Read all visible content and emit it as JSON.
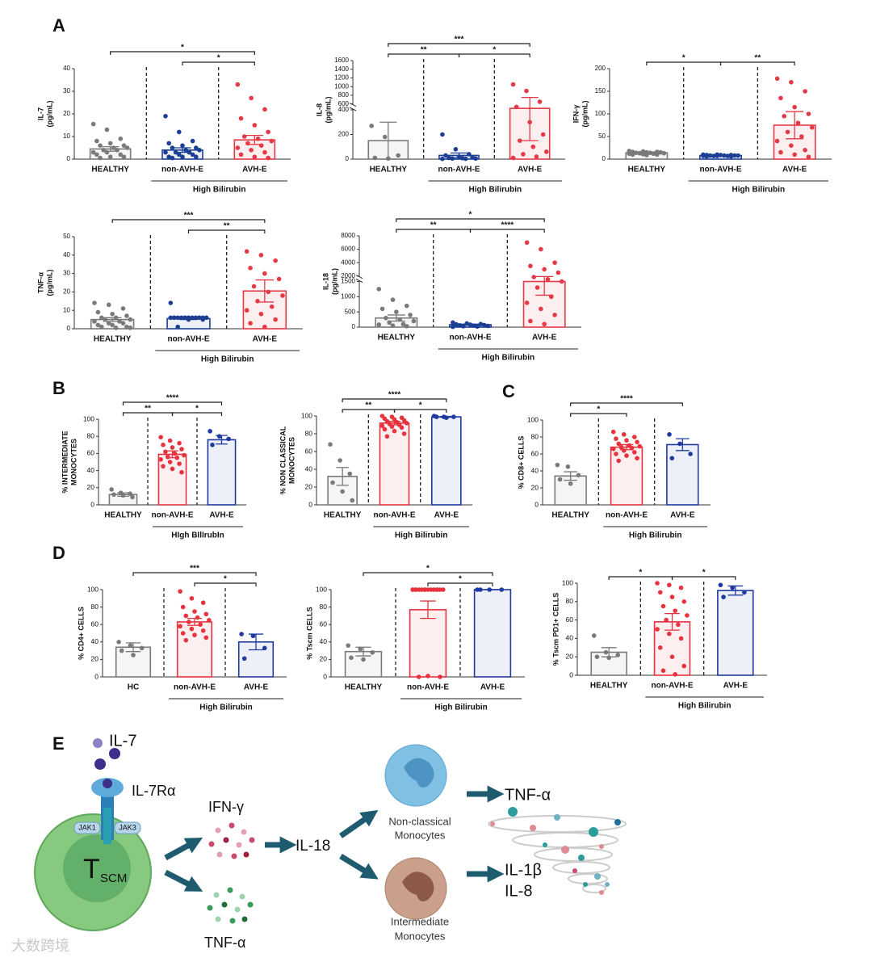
{
  "panel_labels": [
    "A",
    "B",
    "C",
    "D",
    "E"
  ],
  "chart_data": [
    {
      "type": "bar",
      "ylabel": [
        "IL-7",
        "(pg/mL)"
      ],
      "categories": [
        "HEALTHY",
        "non-AVH-E",
        "AVH-E"
      ],
      "colors": [
        "#7a7a7a",
        "#1c3f94",
        "#e63946"
      ],
      "values": [
        4.5,
        4,
        8.5
      ],
      "errors": [
        1,
        1,
        2
      ],
      "points": [
        [
          15.5,
          13,
          9,
          8,
          7,
          6,
          6,
          5,
          5,
          4,
          4,
          3,
          3,
          2,
          2,
          1,
          1,
          0.5
        ],
        [
          19,
          12,
          8,
          7,
          6,
          5,
          5,
          4,
          4,
          3,
          3,
          3,
          2,
          2,
          1,
          1,
          1,
          0.5
        ],
        [
          33,
          27,
          22,
          18,
          15,
          12,
          10,
          9,
          8,
          7,
          6,
          5,
          4,
          3,
          2,
          1,
          0.5
        ]
      ],
      "ylim": [
        0,
        40
      ],
      "yticks": [
        0,
        10,
        20,
        30,
        40
      ],
      "group_label": "High Bilirubin",
      "brackets": [
        {
          "from": 1,
          "to": 2,
          "label": "*"
        },
        {
          "from": 0,
          "to": 2,
          "label": "*"
        }
      ]
    },
    {
      "type": "bar",
      "ylabel": [
        "IL-8",
        "(pg/mL)"
      ],
      "categories": [
        "HEALTHY",
        "non-AVH-E",
        "AVH-E"
      ],
      "colors": [
        "#7a7a7a",
        "#1c3f94",
        "#e63946"
      ],
      "values": [
        150,
        30,
        450
      ],
      "errors": [
        150,
        20,
        300
      ],
      "points": [
        [
          270,
          180,
          30,
          10,
          5
        ],
        [
          200,
          80,
          40,
          30,
          20,
          15,
          10,
          8,
          5,
          5,
          3,
          2
        ],
        [
          1050,
          900,
          650,
          500,
          300,
          200,
          150,
          100,
          60,
          40,
          20,
          10
        ]
      ],
      "ylim": [
        0,
        1600
      ],
      "ybreak": [
        400,
        600
      ],
      "yticks": [
        0,
        200,
        400,
        600,
        800,
        1000,
        1200,
        1400,
        1600
      ],
      "group_label": "High Bilirubin",
      "brackets": [
        {
          "from": 0,
          "to": 1,
          "label": "**"
        },
        {
          "from": 1,
          "to": 2,
          "label": "*"
        },
        {
          "from": 0,
          "to": 2,
          "label": "***"
        }
      ]
    },
    {
      "type": "bar",
      "ylabel": [
        "IFN-γ",
        "(pg/mL)"
      ],
      "categories": [
        "HEALTHY",
        "non-AVH-E",
        "AVH-E"
      ],
      "colors": [
        "#7a7a7a",
        "#1c3f94",
        "#e63946"
      ],
      "values": [
        14,
        8,
        75
      ],
      "errors": [
        2,
        1,
        30
      ],
      "points": [
        [
          18,
          17,
          16,
          16,
          15,
          15,
          14,
          14,
          13,
          13,
          12,
          12,
          11,
          10,
          10,
          9
        ],
        [
          10,
          10,
          9,
          9,
          9,
          8,
          8,
          8,
          8,
          7,
          7,
          7,
          7,
          6,
          6
        ],
        [
          178,
          170,
          150,
          135,
          115,
          100,
          95,
          80,
          70,
          60,
          50,
          40,
          30,
          20,
          15,
          10,
          5
        ]
      ],
      "ylim": [
        0,
        200
      ],
      "yticks": [
        0,
        50,
        100,
        150,
        200
      ],
      "group_label": "High Bilirubin",
      "brackets": [
        {
          "from": 0,
          "to": 1,
          "label": "*"
        },
        {
          "from": 1,
          "to": 2,
          "label": "**"
        }
      ]
    },
    {
      "type": "bar",
      "ylabel": [
        "TNF-α",
        "(pg/mL)"
      ],
      "categories": [
        "HEALTHY",
        "non-AVH-E",
        "AVH-E"
      ],
      "colors": [
        "#7a7a7a",
        "#1c3f94",
        "#e63946"
      ],
      "values": [
        5,
        5.5,
        20.5
      ],
      "errors": [
        1,
        0.5,
        6
      ],
      "points": [
        [
          14,
          13,
          11,
          9,
          8,
          7,
          6,
          6,
          5,
          5,
          4,
          4,
          3,
          3,
          2,
          2,
          1,
          1,
          0.5,
          0.5
        ],
        [
          14,
          6,
          6,
          6,
          6,
          6,
          6,
          6,
          6,
          6,
          6,
          6,
          6,
          6,
          6,
          5,
          5,
          1
        ],
        [
          42,
          40,
          37,
          33,
          30,
          27,
          23,
          20,
          18,
          15,
          12,
          10,
          8,
          5,
          3,
          1
        ]
      ],
      "ylim": [
        0,
        50
      ],
      "yticks": [
        0,
        10,
        20,
        30,
        40,
        50
      ],
      "group_label": "High Bilirubin",
      "brackets": [
        {
          "from": 1,
          "to": 2,
          "label": "**"
        },
        {
          "from": 0,
          "to": 2,
          "label": "***"
        }
      ]
    },
    {
      "type": "bar",
      "ylabel": [
        "IL-18",
        "(pg/mL)"
      ],
      "categories": [
        "HEALTHY",
        "non-AVH-E",
        "AVH-E"
      ],
      "colors": [
        "#7a7a7a",
        "#1c3f94",
        "#e63946"
      ],
      "values": [
        300,
        80,
        1500
      ],
      "errors": [
        100,
        20,
        450
      ],
      "points": [
        [
          1250,
          900,
          700,
          600,
          500,
          400,
          300,
          250,
          200,
          150,
          100,
          80,
          50,
          30
        ],
        [
          150,
          120,
          100,
          90,
          80,
          70,
          60,
          50,
          40,
          30,
          20,
          10
        ],
        [
          7000,
          6000,
          4000,
          3500,
          3000,
          2500,
          1900,
          1700,
          1500,
          1300,
          1000,
          800,
          600,
          400,
          200,
          100
        ]
      ],
      "ylim": [
        0,
        8000
      ],
      "ybreak": [
        1500,
        2000
      ],
      "yticks": [
        0,
        500,
        1000,
        1500,
        2000,
        4000,
        6000,
        8000
      ],
      "group_label": "High Bilirubin",
      "brackets": [
        {
          "from": 0,
          "to": 1,
          "label": "**"
        },
        {
          "from": 1,
          "to": 2,
          "label": "****"
        },
        {
          "from": 0,
          "to": 2,
          "label": "*"
        }
      ]
    },
    {
      "type": "bar",
      "ylabel": [
        "% INTERMEDIATE",
        "MONOCYTES"
      ],
      "categories": [
        "HEALTHY",
        "non-AVH-E",
        "AVH-E"
      ],
      "colors": [
        "#7a7a7a",
        "#e8333f",
        "#1f3aa0"
      ],
      "values": [
        12,
        59,
        76
      ],
      "errors": [
        2,
        4,
        5
      ],
      "points": [
        [
          18,
          14,
          13,
          12,
          11,
          9
        ],
        [
          79,
          75,
          72,
          70,
          67,
          65,
          62,
          60,
          58,
          56,
          55,
          53,
          50,
          48,
          45,
          42,
          38
        ],
        [
          86,
          80,
          77,
          70
        ]
      ],
      "ylim": [
        0,
        100
      ],
      "yticks": [
        0,
        20,
        40,
        60,
        80,
        100
      ],
      "group_label": "HIgh BIlIrubIn",
      "brackets": [
        {
          "from": 0,
          "to": 1,
          "label": "**"
        },
        {
          "from": 1,
          "to": 2,
          "label": "*"
        },
        {
          "from": 0,
          "to": 2,
          "label": "****"
        }
      ]
    },
    {
      "type": "bar",
      "ylabel": [
        "% NON CLASSICAL",
        "MONOCYTES"
      ],
      "categories": [
        "HEALTHY",
        "non-AVH-E",
        "AVH-E"
      ],
      "colors": [
        "#7a7a7a",
        "#e8333f",
        "#1f3aa0"
      ],
      "values": [
        32,
        92,
        99
      ],
      "errors": [
        10,
        2,
        0.5
      ],
      "points": [
        [
          68,
          50,
          35,
          25,
          15,
          5
        ],
        [
          100,
          99,
          98,
          97,
          96,
          95,
          94,
          93,
          92,
          91,
          90,
          89,
          88,
          87,
          85,
          83,
          80,
          77
        ],
        [
          100,
          99,
          99,
          99,
          98
        ]
      ],
      "ylim": [
        0,
        100
      ],
      "yticks": [
        0,
        20,
        40,
        60,
        80,
        100
      ],
      "group_label": "High Bilirubin",
      "brackets": [
        {
          "from": 0,
          "to": 1,
          "label": "**"
        },
        {
          "from": 1,
          "to": 2,
          "label": "*"
        },
        {
          "from": 0,
          "to": 2,
          "label": "****"
        }
      ]
    },
    {
      "type": "bar",
      "ylabel": [
        "% CD8+ CELLS"
      ],
      "categories": [
        "HEALTHY",
        "non-AVH-E",
        "AVH-E"
      ],
      "colors": [
        "#7a7a7a",
        "#e8333f",
        "#1f3aa0"
      ],
      "values": [
        34,
        68,
        71
      ],
      "errors": [
        5,
        3,
        7
      ],
      "points": [
        [
          47,
          45,
          35,
          30,
          25
        ],
        [
          86,
          83,
          80,
          78,
          76,
          74,
          72,
          70,
          69,
          68,
          67,
          66,
          64,
          62,
          60,
          58,
          55,
          52
        ],
        [
          83,
          72,
          60,
          55
        ]
      ],
      "ylim": [
        0,
        100
      ],
      "yticks": [
        0,
        20,
        40,
        60,
        80,
        100
      ],
      "group_label": "High Bilirubin",
      "brackets": [
        {
          "from": 0,
          "to": 1,
          "label": "*"
        },
        {
          "from": 0,
          "to": 2,
          "label": "****"
        }
      ]
    },
    {
      "type": "bar",
      "ylabel": [
        "% CD4+ CELLS"
      ],
      "categories": [
        "HC",
        "non-AVH-E",
        "AVH-E"
      ],
      "colors": [
        "#7a7a7a",
        "#e8333f",
        "#1f3aa0"
      ],
      "values": [
        34,
        63,
        40
      ],
      "errors": [
        5,
        4,
        9
      ],
      "points": [
        [
          40,
          36,
          33,
          30,
          25
        ],
        [
          98,
          90,
          85,
          80,
          75,
          72,
          70,
          68,
          65,
          63,
          60,
          58,
          55,
          53,
          50,
          48,
          45,
          42
        ],
        [
          49,
          47,
          33,
          21
        ]
      ],
      "ylim": [
        0,
        100
      ],
      "yticks": [
        0,
        20,
        40,
        60,
        80,
        100
      ],
      "group_label": "High Bilirubin",
      "brackets": [
        {
          "from": 1,
          "to": 2,
          "label": "*"
        },
        {
          "from": 0,
          "to": 2,
          "label": "***"
        }
      ]
    },
    {
      "type": "bar",
      "ylabel": [
        "% Tscm CELLS"
      ],
      "categories": [
        "HEALTHY",
        "non-AVH-E",
        "AVH-E"
      ],
      "colors": [
        "#7a7a7a",
        "#e8333f",
        "#1f3aa0"
      ],
      "values": [
        29,
        77,
        100
      ],
      "errors": [
        5,
        10,
        0
      ],
      "points": [
        [
          36,
          32,
          28,
          22,
          20
        ],
        [
          100,
          100,
          100,
          100,
          100,
          100,
          100,
          100,
          100,
          100,
          100,
          100,
          100,
          100,
          100,
          1,
          0,
          0
        ],
        [
          100,
          100,
          100,
          100
        ]
      ],
      "ylim": [
        0,
        100
      ],
      "yticks": [
        0,
        20,
        40,
        60,
        80,
        100
      ],
      "group_label": "High Bilirubin",
      "brackets": [
        {
          "from": 1,
          "to": 2,
          "label": "*"
        },
        {
          "from": 0,
          "to": 2,
          "label": "*"
        }
      ]
    },
    {
      "type": "bar",
      "ylabel": [
        "% Tscm PD1+ CELLS"
      ],
      "categories": [
        "HEALTHY",
        "non-AVH-E",
        "AVH-E"
      ],
      "colors": [
        "#7a7a7a",
        "#e8333f",
        "#1f3aa0"
      ],
      "values": [
        25,
        58,
        92
      ],
      "errors": [
        5,
        9,
        5
      ],
      "points": [
        [
          43,
          25,
          22,
          20,
          19
        ],
        [
          100,
          98,
          95,
          90,
          85,
          80,
          75,
          70,
          65,
          60,
          55,
          50,
          45,
          40,
          30,
          20,
          10,
          5,
          1
        ],
        [
          98,
          95,
          90,
          85
        ]
      ],
      "ylim": [
        0,
        100
      ],
      "yticks": [
        0,
        20,
        40,
        60,
        80,
        100
      ],
      "group_label": "High Bilirubin",
      "brackets": [
        {
          "from": 0,
          "to": 1,
          "label": "*"
        },
        {
          "from": 1,
          "to": 2,
          "label": "*"
        }
      ]
    }
  ],
  "diagram": {
    "il7": "IL-7",
    "il7r": "IL-7Rα",
    "jak1": "JAK1",
    "jak3": "JAK3",
    "t": "T",
    "scm": "SCM",
    "ifng": "IFN-γ",
    "tnfa_left": "TNF-α",
    "il18": "IL-18",
    "nonclassical": [
      "Non-classical",
      "Monocytes"
    ],
    "intermediate": [
      "Intermediate",
      "Monocytes"
    ],
    "tnfa_right": "TNF-α",
    "il1b": "IL-1β",
    "il8": "IL-8"
  },
  "watermark": "大数跨境"
}
